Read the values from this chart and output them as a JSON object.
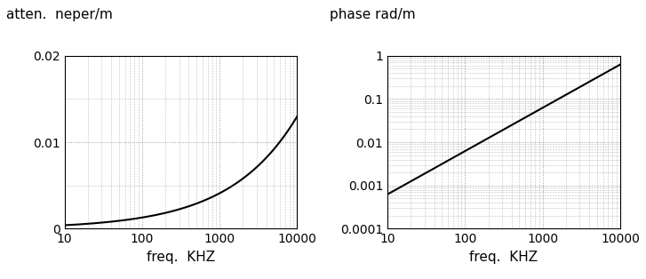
{
  "left_title": "atten.  neper/m",
  "right_title": "phase rad/m",
  "xlabel": "freq.  KHZ",
  "xlim": [
    10,
    10000
  ],
  "left_ylim": [
    0,
    0.02
  ],
  "left_yticks": [
    0,
    0.01,
    0.02
  ],
  "right_ylim": [
    0.0001,
    1
  ],
  "right_yticks": [
    0.0001,
    0.001,
    0.01,
    0.1,
    1
  ],
  "xticks": [
    10,
    100,
    1000,
    10000
  ],
  "atten_coeff": 0.00013,
  "phase_coeff": 6.28e-05,
  "line_color": "#000000",
  "grid_color": "#888888",
  "bg_color": "#ffffff",
  "tick_label_fontsize": 10,
  "title_fontsize": 11,
  "xlabel_fontsize": 11
}
